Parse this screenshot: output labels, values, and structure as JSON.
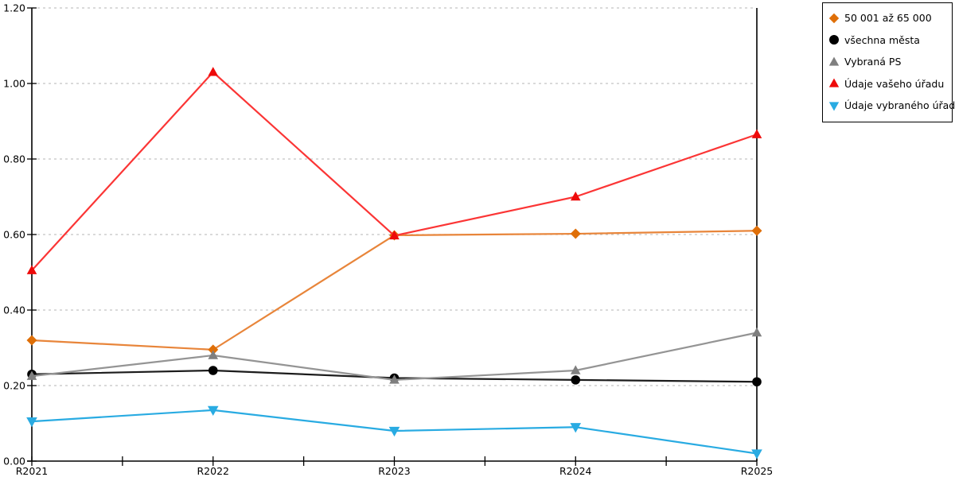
{
  "chart_data": {
    "type": "line",
    "title": "",
    "xlabel": "",
    "ylabel": "",
    "x_categories": [
      "R2021",
      "R2022",
      "R2023",
      "R2024",
      "R2025"
    ],
    "ylim": [
      0,
      1.2
    ],
    "y_tick_labels": [
      "0.00",
      "0.20",
      "0.40",
      "0.60",
      "0.80",
      "1.00",
      "1.20"
    ],
    "grid": "horizontal dashed, minor x ticks at half intervals, no vertical gridlines",
    "legend_position": "outside top-right, black-bordered white box",
    "colors": {
      "grid": "#c4c4c4",
      "axis": "#000000"
    },
    "series": [
      {
        "name": "50 001 až 65 000",
        "marker": "diamond",
        "marker_color": "#df6f08",
        "line_color": "#e8853a",
        "values": [
          0.32,
          0.295,
          0.598,
          0.602,
          0.61
        ]
      },
      {
        "name": "všechna města",
        "marker": "circle",
        "marker_color": "#000000",
        "line_color": "#1c1c1c",
        "values": [
          0.23,
          0.24,
          0.22,
          0.215,
          0.21
        ]
      },
      {
        "name": "Vybraná PS",
        "marker": "triangle-up",
        "marker_color": "#7f7f7f",
        "line_color": "#949494",
        "values": [
          0.225,
          0.28,
          0.215,
          0.24,
          0.34
        ]
      },
      {
        "name": "Údaje vašeho úřadu",
        "marker": "triangle-up",
        "marker_color": "#ee0a0a",
        "line_color": "#fb3535",
        "values": [
          0.505,
          1.03,
          0.597,
          0.7,
          0.865
        ]
      },
      {
        "name": "Údaje vybraného úřadu",
        "marker": "triangle-down",
        "marker_color": "#29abe2",
        "line_color": "#29abe2",
        "values": [
          0.105,
          0.135,
          0.08,
          0.09,
          0.02
        ]
      }
    ]
  }
}
